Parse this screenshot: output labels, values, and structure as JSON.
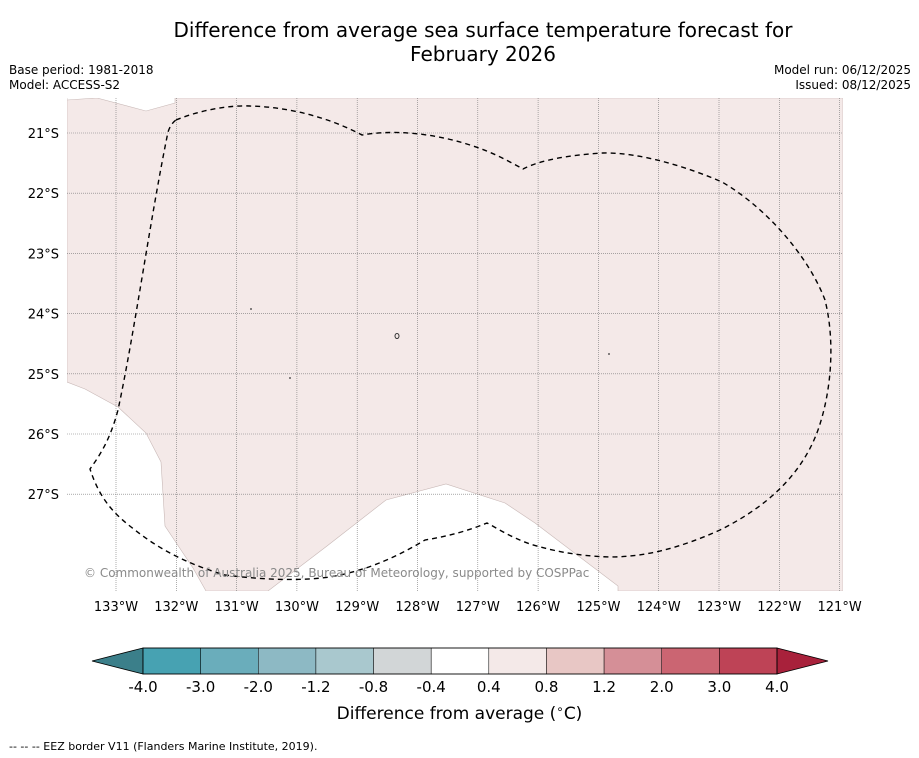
{
  "title": {
    "line1": "Difference from average sea surface temperature forecast for",
    "line2": "February 2026"
  },
  "meta": {
    "base_period": "Base period: 1981-2018",
    "model": "Model: ACCESS-S2",
    "model_run": "Model run: 06/12/2025",
    "issued": "Issued: 08/12/2025"
  },
  "map": {
    "lat_labels": [
      "21°S",
      "22°S",
      "23°S",
      "24°S",
      "25°S",
      "26°S",
      "27°S"
    ],
    "lon_labels": [
      "133°W",
      "132°W",
      "131°W",
      "130°W",
      "129°W",
      "128°W",
      "127°W",
      "126°W",
      "125°W",
      "124°W",
      "123°W",
      "122°W",
      "121°W"
    ],
    "anomaly_category": "0.4 to 0.8",
    "anomaly_color": "#f4e9e8",
    "copyright": "© Commonwealth of Australia 2025, Bureau of Meteorology, supported by COSPPac"
  },
  "colorbar": {
    "title_prefix": "Difference from average (",
    "title_unit": "C)",
    "title_degree": "∘",
    "ticks": [
      "-4.0",
      "-3.0",
      "-2.0",
      "-1.2",
      "-0.8",
      "-0.4",
      "0.4",
      "0.8",
      "1.2",
      "2.0",
      "3.0",
      "4.0"
    ],
    "colors": [
      "#47a2b2",
      "#6aadbb",
      "#8db9c4",
      "#a9c8ce",
      "#d2d6d7",
      "#ffffff",
      "#f4e9e8",
      "#e8c7c5",
      "#d58f97",
      "#cb6572",
      "#be4356"
    ],
    "extend_low_color": "#3b7f8a",
    "extend_high_color": "#a8213b"
  },
  "footnote": "--  --  -- EEZ border V11 (Flanders Marine Institute, 2019)."
}
